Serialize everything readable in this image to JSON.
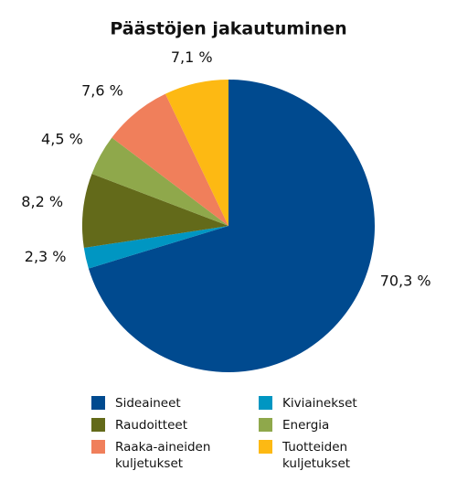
{
  "chart_data": {
    "type": "pie",
    "title": "Päästöjen jakautuminen",
    "categories": [
      "Sideaineet",
      "Kiviainekset",
      "Raudoitteet",
      "Energia",
      "Raaka-aineiden kuljetukset",
      "Tuotteiden kuljetukset"
    ],
    "values": [
      70.3,
      2.3,
      8.2,
      4.5,
      7.6,
      7.1
    ],
    "value_labels": [
      "70,3 %",
      "2,3 %",
      "8,2 %",
      "4,5 %",
      "7,6 %",
      "7,1 %"
    ],
    "colors": [
      "#004a8f",
      "#0096c2",
      "#636a1a",
      "#8fa84b",
      "#f07f5b",
      "#fdb913"
    ]
  }
}
